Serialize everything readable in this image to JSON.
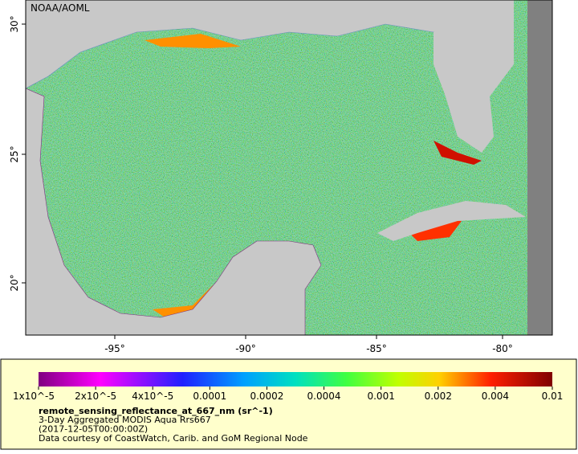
{
  "map": {
    "title": "NOAA/AOML",
    "lon_ticks": [
      "-95°",
      "-90°",
      "-85°",
      "-80°"
    ],
    "lat_ticks": [
      "30°",
      "25°",
      "20°"
    ]
  },
  "colorbar": {
    "ticks": [
      "1x10^-5",
      "2x10^-5",
      "4x10^-5",
      "0.0001",
      "0.0002",
      "0.0004",
      "0.001",
      "0.002",
      "0.004",
      "0.01"
    ],
    "variable": "remote_sensing_reflectance_at_667_nm (sr^-1)",
    "lines": [
      "3-Day Aggregated MODIS Aqua Rrs667",
      "(2017-12-05T00:00:00Z)",
      "Data courtesy of CoastWatch, Carib. and GoM Regional Node"
    ]
  }
}
